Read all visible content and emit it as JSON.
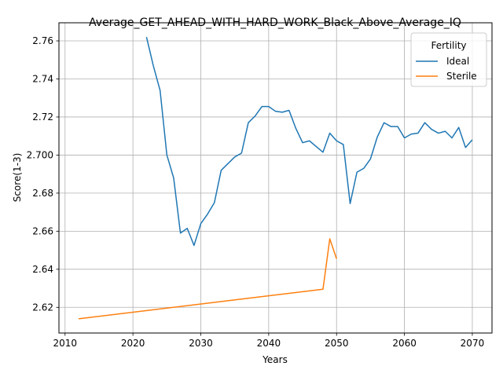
{
  "chart_data": {
    "type": "line",
    "title": "Average_GET_AHEAD_WITH_HARD_WORK_Black_Above_Average_IQ",
    "xlabel": "Years",
    "ylabel": "Score(1-3)",
    "xlim": [
      2009.1,
      2072.9
    ],
    "ylim": [
      2.6065,
      2.7695
    ],
    "xticks": [
      2010,
      2020,
      2030,
      2040,
      2050,
      2060,
      2070
    ],
    "xtick_labels": [
      "2010",
      "2020",
      "2030",
      "2040",
      "2050",
      "2060",
      "2070"
    ],
    "yticks": [
      2.62,
      2.64,
      2.66,
      2.68,
      2.7,
      2.72,
      2.74,
      2.76
    ],
    "ytick_labels": [
      "2.62",
      "2.64",
      "2.66",
      "2.68",
      "2.700",
      "2.72",
      "2.74",
      "2.76"
    ],
    "grid": true,
    "legend": {
      "title": "Fertility",
      "position": "top-right"
    },
    "series": [
      {
        "name": "Ideal",
        "color": "#1f77b4",
        "x": [
          2022,
          2023,
          2024,
          2025,
          2026,
          2027,
          2028,
          2029,
          2030,
          2031,
          2032,
          2033,
          2034,
          2035,
          2036,
          2037,
          2038,
          2039,
          2040,
          2041,
          2042,
          2043,
          2044,
          2045,
          2046,
          2047,
          2048,
          2049,
          2050,
          2051,
          2052,
          2053,
          2054,
          2055,
          2056,
          2057,
          2058,
          2059,
          2060,
          2061,
          2062,
          2063,
          2064,
          2065,
          2066,
          2067,
          2068,
          2069,
          2070
        ],
        "y": [
          2.762,
          2.747,
          2.734,
          2.7,
          2.688,
          2.659,
          2.6615,
          2.6525,
          2.664,
          2.669,
          2.675,
          2.692,
          2.6955,
          2.699,
          2.701,
          2.717,
          2.7205,
          2.7255,
          2.7255,
          2.723,
          2.7225,
          2.7235,
          2.714,
          2.7065,
          2.7075,
          2.7045,
          2.7015,
          2.7115,
          2.7075,
          2.7055,
          2.6745,
          2.691,
          2.693,
          2.698,
          2.7095,
          2.717,
          2.715,
          2.715,
          2.709,
          2.711,
          2.7115,
          2.717,
          2.7135,
          2.7115,
          2.7125,
          2.709,
          2.7145,
          2.704,
          2.708
        ]
      },
      {
        "name": "Sterile",
        "color": "#ff7f0e",
        "x": [
          2012,
          2048,
          2049,
          2050
        ],
        "y": [
          2.614,
          2.6295,
          2.656,
          2.6455
        ]
      }
    ]
  }
}
